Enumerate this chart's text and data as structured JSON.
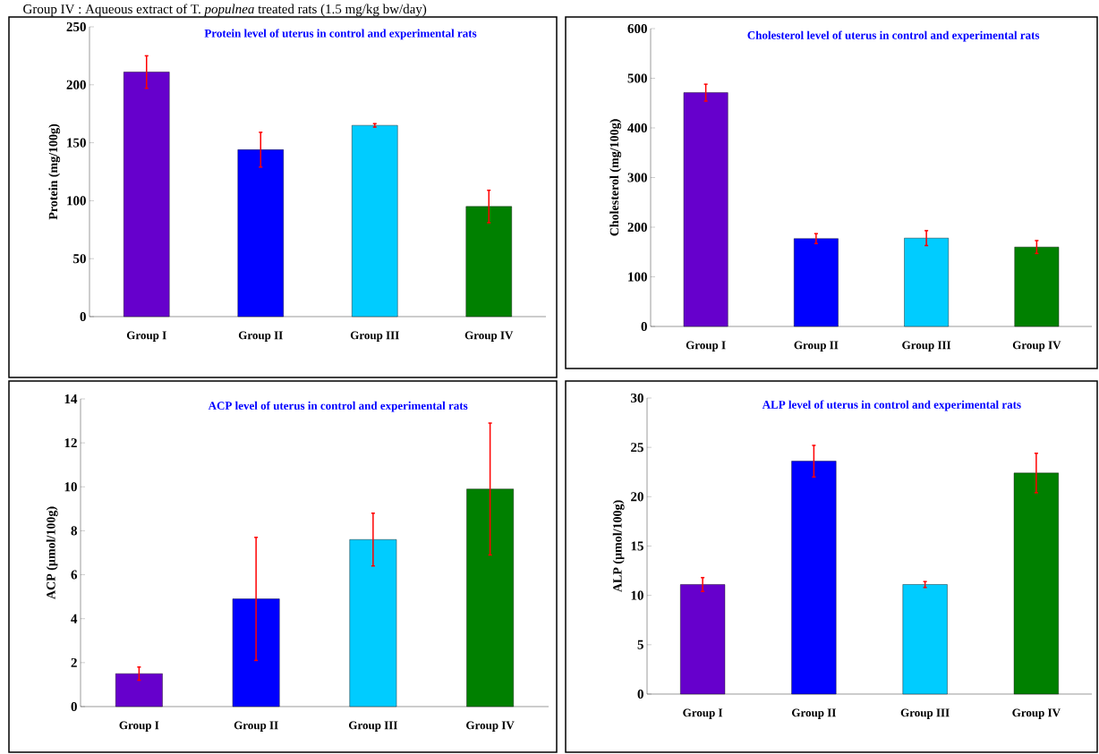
{
  "chart_data": [
    {
      "type": "bar",
      "title": "Protein level of uterus in control and experimental rats",
      "ylabel": "Protein (mg/100g)",
      "categories": [
        "Group I",
        "Group II",
        "Group III",
        "Group IV"
      ],
      "values": [
        211,
        144,
        165,
        95
      ],
      "errors": [
        14,
        15,
        1.5,
        14
      ],
      "colors": [
        "#6600cc",
        "#0000ff",
        "#00ccff",
        "#008000"
      ],
      "ylim": [
        0,
        250
      ],
      "yticks": [
        0,
        50,
        100,
        150,
        200,
        250
      ],
      "annotations": [
        "Group IV : Aqueous extract of T. *populnea* treated rats (1.5 mg/kg bw/day)"
      ]
    },
    {
      "type": "bar",
      "title": "Cholesterol level of uterus in control and experimental rats",
      "ylabel": "Cholesterol (mg/100g)",
      "categories": [
        "Group I",
        "Group II",
        "Group III",
        "Group IV"
      ],
      "values": [
        471,
        177,
        178,
        160
      ],
      "errors": [
        17,
        10,
        15,
        13
      ],
      "colors": [
        "#6600cc",
        "#0000ff",
        "#00ccff",
        "#008000"
      ],
      "ylim": [
        0,
        600
      ],
      "yticks": [
        0,
        100,
        200,
        300,
        400,
        500,
        600
      ]
    },
    {
      "type": "bar",
      "title": "ACP level of uterus in control and experimental rats",
      "ylabel": "ACP (µmol/100g)",
      "categories": [
        "Group I",
        "Group II",
        "Group III",
        "Group IV"
      ],
      "values": [
        1.5,
        4.9,
        7.6,
        9.9
      ],
      "errors": [
        0.3,
        2.8,
        1.2,
        3.0
      ],
      "colors": [
        "#6600cc",
        "#0000ff",
        "#00ccff",
        "#008000"
      ],
      "ylim": [
        0,
        14
      ],
      "yticks": [
        0,
        2,
        4,
        6,
        8,
        10,
        12,
        14
      ]
    },
    {
      "type": "bar",
      "title": "ALP level of uterus in control and experimental rats",
      "ylabel": "ALP (µmol/100g)",
      "categories": [
        "Group I",
        "Group II",
        "Group III",
        "Group IV"
      ],
      "values": [
        11.1,
        23.6,
        11.1,
        22.4
      ],
      "errors": [
        0.7,
        1.6,
        0.3,
        2.0
      ],
      "colors": [
        "#6600cc",
        "#0000ff",
        "#00ccff",
        "#008000"
      ],
      "ylim": [
        0,
        30
      ],
      "yticks": [
        0,
        5,
        10,
        15,
        20,
        25,
        30
      ]
    }
  ]
}
